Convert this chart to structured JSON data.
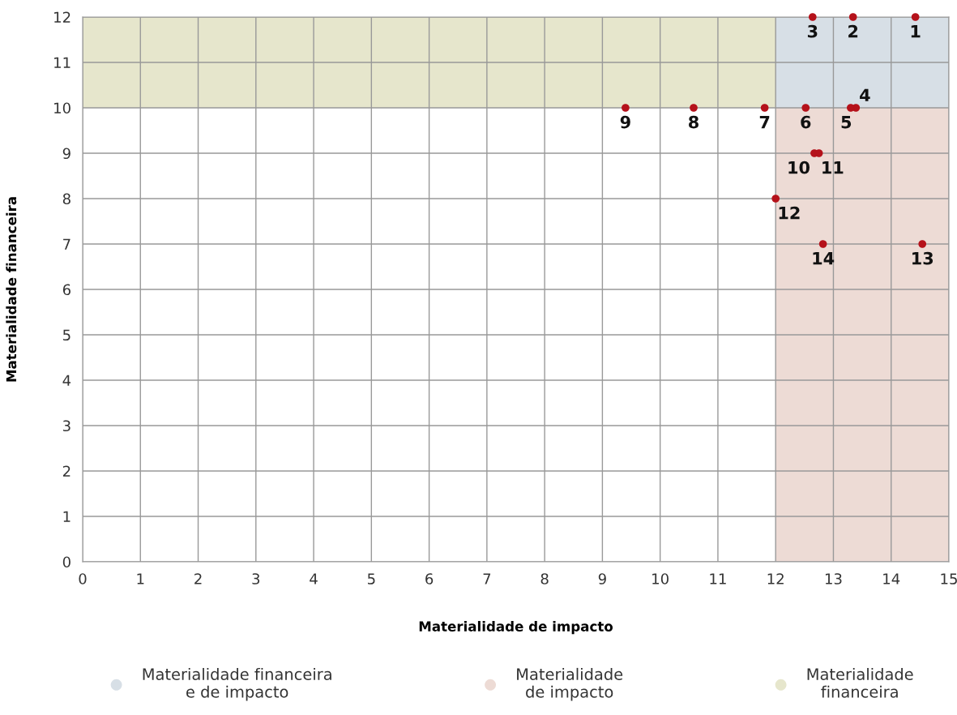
{
  "chart_data": {
    "type": "scatter",
    "xlabel": "Materialidade de impacto",
    "ylabel": "Materialidade financeira",
    "x": [
      14.42,
      13.34,
      12.64,
      13.39,
      13.3,
      12.52,
      11.81,
      10.58,
      9.4,
      12.67,
      12.75,
      12.0,
      14.54,
      12.82
    ],
    "series": [
      {
        "color": "#b5121b",
        "values": [
          12,
          12,
          12,
          10,
          10,
          10,
          10,
          10,
          10,
          9,
          9,
          8,
          7,
          7
        ]
      }
    ],
    "marker": "circle",
    "annotations": [
      {
        "text": "1",
        "x": 14.42,
        "y": 12
      },
      {
        "text": "2",
        "x": 13.34,
        "y": 12
      },
      {
        "text": "3",
        "x": 12.64,
        "y": 12
      },
      {
        "text": "4",
        "x": 13.39,
        "y": 10
      },
      {
        "text": "5",
        "x": 13.3,
        "y": 10
      },
      {
        "text": "6",
        "x": 12.52,
        "y": 10
      },
      {
        "text": "7",
        "x": 11.81,
        "y": 10
      },
      {
        "text": "8",
        "x": 10.58,
        "y": 10
      },
      {
        "text": "9",
        "x": 9.4,
        "y": 10
      },
      {
        "text": "10",
        "x": 12.67,
        "y": 9
      },
      {
        "text": "11",
        "x": 12.75,
        "y": 9
      },
      {
        "text": "12",
        "x": 12.0,
        "y": 8
      },
      {
        "text": "13",
        "x": 14.54,
        "y": 7
      },
      {
        "text": "14",
        "x": 12.82,
        "y": 7
      }
    ],
    "bands": [
      {
        "axis": "x",
        "from": 12,
        "to": 15,
        "color": "#eddbd5",
        "label": "Materialidade\nde impacto"
      },
      {
        "axis": "y",
        "from": 10,
        "to": 12,
        "color": "#e6e6cc",
        "label": "Materialidade\nfinanceira"
      },
      {
        "axis": "x",
        "from": 12,
        "to": 15,
        "color": "#d7dfe6",
        "label": "Materialidade financeira\ne de impacto"
      }
    ],
    "xlim": [
      0,
      15
    ],
    "ylim": [
      0,
      12
    ],
    "xticks": [
      0,
      1,
      2,
      3,
      4,
      5,
      6,
      7,
      8,
      9,
      10,
      11,
      12,
      13,
      14,
      15
    ],
    "yticks": [
      0,
      1,
      2,
      3,
      4,
      5,
      6,
      7,
      8,
      9,
      10,
      11,
      12
    ],
    "grid": true,
    "legend": "bottom"
  }
}
